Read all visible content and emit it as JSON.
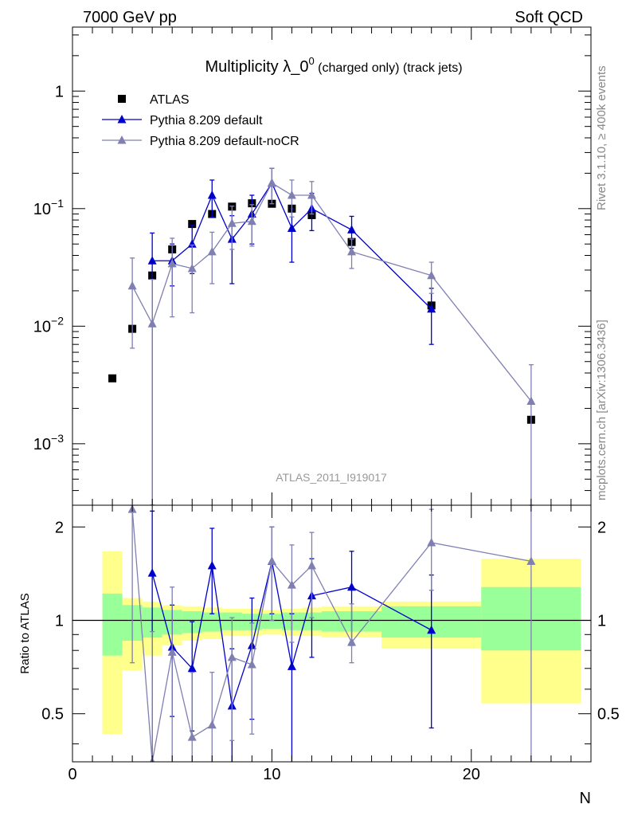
{
  "header": {
    "left_label": "7000 GeV pp",
    "right_label": "Soft QCD"
  },
  "side_labels": {
    "rivet": "Rivet 3.1.10, ≥ 400k events",
    "mcplots": "mcplots.cern.ch [arXiv:1306.3436]"
  },
  "colors": {
    "data": "#000000",
    "default": "#0000cc",
    "nocr": "#7f7fb2",
    "band_inner": "#99ff99",
    "band_outer": "#ffff8c"
  },
  "chart_data": [
    {
      "type": "line",
      "title_main": "Multiplicity λ_0",
      "title_sup": "0",
      "title_suffix": " (charged only) (track jets)",
      "analysis_label": "ATLAS_2011_I919017",
      "xlim": [
        0,
        26
      ],
      "ylim": [
        0.0003,
        3.5
      ],
      "y_scale": "log",
      "y_ticks": [
        {
          "value": 1,
          "base": "1",
          "exp": ""
        },
        {
          "value": 0.1,
          "base": "10",
          "exp": "−1"
        },
        {
          "value": 0.01,
          "base": "10",
          "exp": "−2"
        },
        {
          "value": 0.001,
          "base": "10",
          "exp": "−3"
        }
      ],
      "legend_position": "top-left",
      "series": [
        {
          "name": "ATLAS",
          "marker": "square",
          "points": [
            {
              "x": 2,
              "y": 0.0036
            },
            {
              "x": 3,
              "y": 0.0095
            },
            {
              "x": 4,
              "y": 0.027
            },
            {
              "x": 5,
              "y": 0.045
            },
            {
              "x": 6,
              "y": 0.074
            },
            {
              "x": 7,
              "y": 0.09
            },
            {
              "x": 8,
              "y": 0.104
            },
            {
              "x": 9,
              "y": 0.111
            },
            {
              "x": 10,
              "y": 0.11
            },
            {
              "x": 11,
              "y": 0.1
            },
            {
              "x": 12,
              "y": 0.088
            },
            {
              "x": 14,
              "y": 0.052
            },
            {
              "x": 18,
              "y": 0.015
            },
            {
              "x": 23,
              "y": 0.0016
            }
          ]
        },
        {
          "name": "Pythia 8.209 default",
          "marker": "triangle",
          "points": [
            {
              "x": 4,
              "y": 0.036,
              "lo": 0.0003,
              "hi": 0.062
            },
            {
              "x": 5,
              "y": 0.036,
              "lo": 0.022,
              "hi": 0.05
            },
            {
              "x": 6,
              "y": 0.05,
              "lo": 0.028,
              "hi": 0.072
            },
            {
              "x": 7,
              "y": 0.13,
              "lo": 0.085,
              "hi": 0.175
            },
            {
              "x": 8,
              "y": 0.055,
              "lo": 0.023,
              "hi": 0.087
            },
            {
              "x": 9,
              "y": 0.09,
              "lo": 0.05,
              "hi": 0.13
            },
            {
              "x": 10,
              "y": 0.165,
              "lo": 0.11,
              "hi": 0.22
            },
            {
              "x": 11,
              "y": 0.068,
              "lo": 0.035,
              "hi": 0.1
            },
            {
              "x": 12,
              "y": 0.1,
              "lo": 0.065,
              "hi": 0.135
            },
            {
              "x": 14,
              "y": 0.066,
              "lo": 0.046,
              "hi": 0.086
            },
            {
              "x": 18,
              "y": 0.014,
              "lo": 0.007,
              "hi": 0.021
            }
          ]
        },
        {
          "name": "Pythia 8.209 default-noCR",
          "marker": "triangle",
          "points": [
            {
              "x": 3,
              "y": 0.022,
              "lo": 0.0065,
              "hi": 0.038
            },
            {
              "x": 4,
              "y": 0.0105,
              "lo": 0.0003,
              "hi": 0.025
            },
            {
              "x": 5,
              "y": 0.034,
              "lo": 0.012,
              "hi": 0.056
            },
            {
              "x": 6,
              "y": 0.031,
              "lo": 0.013,
              "hi": 0.049
            },
            {
              "x": 7,
              "y": 0.043,
              "lo": 0.023,
              "hi": 0.063
            },
            {
              "x": 8,
              "y": 0.075,
              "lo": 0.045,
              "hi": 0.105
            },
            {
              "x": 9,
              "y": 0.078,
              "lo": 0.048,
              "hi": 0.108
            },
            {
              "x": 10,
              "y": 0.165,
              "lo": 0.11,
              "hi": 0.22
            },
            {
              "x": 11,
              "y": 0.13,
              "lo": 0.085,
              "hi": 0.175
            },
            {
              "x": 12,
              "y": 0.13,
              "lo": 0.09,
              "hi": 0.17
            },
            {
              "x": 14,
              "y": 0.043,
              "lo": 0.031,
              "hi": 0.055
            },
            {
              "x": 18,
              "y": 0.027,
              "lo": 0.019,
              "hi": 0.035
            },
            {
              "x": 23,
              "y": 0.0023,
              "lo": 0.0003,
              "hi": 0.0047
            }
          ]
        }
      ]
    },
    {
      "type": "line",
      "ylabel": "Ratio to ATLAS",
      "xlabel": "N",
      "xlim": [
        0,
        26
      ],
      "ylim": [
        0.35,
        2.35
      ],
      "y_scale": "log",
      "y_ticks": [
        0.5,
        1,
        2
      ],
      "x_ticks": [
        0,
        10,
        20
      ],
      "reference_line": 1,
      "uncertainty_bands": [
        {
          "x0": 1.5,
          "x1": 2.5,
          "inner": [
            0.77,
            1.22
          ],
          "outer": [
            0.43,
            1.67
          ]
        },
        {
          "x0": 2.5,
          "x1": 3.5,
          "inner": [
            0.86,
            1.12
          ],
          "outer": [
            0.69,
            1.18
          ]
        },
        {
          "x0": 3.5,
          "x1": 4.5,
          "inner": [
            0.88,
            1.1
          ],
          "outer": [
            0.77,
            1.15
          ]
        },
        {
          "x0": 4.5,
          "x1": 5.5,
          "inner": [
            0.9,
            1.08
          ],
          "outer": [
            0.83,
            1.12
          ]
        },
        {
          "x0": 5.5,
          "x1": 6.5,
          "inner": [
            0.91,
            1.07
          ],
          "outer": [
            0.86,
            1.11
          ]
        },
        {
          "x0": 6.5,
          "x1": 7.5,
          "inner": [
            0.92,
            1.06
          ],
          "outer": [
            0.87,
            1.1
          ]
        },
        {
          "x0": 7.5,
          "x1": 8.5,
          "inner": [
            0.93,
            1.06
          ],
          "outer": [
            0.89,
            1.09
          ]
        },
        {
          "x0": 8.5,
          "x1": 9.5,
          "inner": [
            0.93,
            1.05
          ],
          "outer": [
            0.89,
            1.09
          ]
        },
        {
          "x0": 9.5,
          "x1": 10.5,
          "inner": [
            0.94,
            1.05
          ],
          "outer": [
            0.9,
            1.08
          ]
        },
        {
          "x0": 10.5,
          "x1": 11.5,
          "inner": [
            0.93,
            1.06
          ],
          "outer": [
            0.89,
            1.09
          ]
        },
        {
          "x0": 11.5,
          "x1": 12.5,
          "inner": [
            0.93,
            1.06
          ],
          "outer": [
            0.89,
            1.1
          ]
        },
        {
          "x0": 12.5,
          "x1": 15.5,
          "inner": [
            0.92,
            1.07
          ],
          "outer": [
            0.88,
            1.11
          ]
        },
        {
          "x0": 15.5,
          "x1": 20.5,
          "inner": [
            0.88,
            1.11
          ],
          "outer": [
            0.81,
            1.15
          ]
        },
        {
          "x0": 20.5,
          "x1": 25.5,
          "inner": [
            0.8,
            1.28
          ],
          "outer": [
            0.54,
            1.58
          ]
        }
      ],
      "series": [
        {
          "name": "Pythia 8.209 default",
          "points": [
            {
              "x": 4,
              "y": 1.42,
              "lo": 0.3,
              "hi": 2.25
            },
            {
              "x": 5,
              "y": 0.82,
              "lo": 0.49,
              "hi": 1.12
            },
            {
              "x": 6,
              "y": 0.7,
              "lo": 0.44,
              "hi": 0.99
            },
            {
              "x": 7,
              "y": 1.5,
              "lo": 1.05,
              "hi": 1.98
            },
            {
              "x": 8,
              "y": 0.53,
              "lo": 0.3,
              "hi": 0.81
            },
            {
              "x": 9,
              "y": 0.83,
              "lo": 0.48,
              "hi": 1.18
            },
            {
              "x": 10,
              "y": 1.55,
              "lo": 1.05,
              "hi": 2.0
            },
            {
              "x": 11,
              "y": 0.71,
              "lo": 0.3,
              "hi": 1.05
            },
            {
              "x": 12,
              "y": 1.2,
              "lo": 0.76,
              "hi": 1.58
            },
            {
              "x": 14,
              "y": 1.28,
              "lo": 0.83,
              "hi": 1.67
            },
            {
              "x": 18,
              "y": 0.93,
              "lo": 0.45,
              "hi": 1.4
            }
          ]
        },
        {
          "name": "Pythia 8.209 default-noCR",
          "points": [
            {
              "x": 3,
              "y": 2.28,
              "lo": 0.73,
              "hi": 2.35
            },
            {
              "x": 4,
              "y": 0.35,
              "lo": 0.3,
              "hi": 0.92
            },
            {
              "x": 5,
              "y": 0.79,
              "lo": 0.3,
              "hi": 1.28
            },
            {
              "x": 6,
              "y": 0.42,
              "lo": 0.3,
              "hi": 0.68
            },
            {
              "x": 7,
              "y": 0.46,
              "lo": 0.31,
              "hi": 0.68
            },
            {
              "x": 8,
              "y": 0.76,
              "lo": 0.41,
              "hi": 1.02
            },
            {
              "x": 9,
              "y": 0.72,
              "lo": 0.43,
              "hi": 0.98
            },
            {
              "x": 10,
              "y": 1.55,
              "lo": 1.0,
              "hi": 2.0
            },
            {
              "x": 11,
              "y": 1.3,
              "lo": 0.85,
              "hi": 1.75
            },
            {
              "x": 12,
              "y": 1.5,
              "lo": 1.02,
              "hi": 1.92
            },
            {
              "x": 14,
              "y": 0.85,
              "lo": 0.73,
              "hi": 1.13
            },
            {
              "x": 18,
              "y": 1.78,
              "lo": 1.25,
              "hi": 2.28
            },
            {
              "x": 23,
              "y": 1.55,
              "lo": 0.3,
              "hi": 2.35
            }
          ]
        }
      ]
    }
  ]
}
